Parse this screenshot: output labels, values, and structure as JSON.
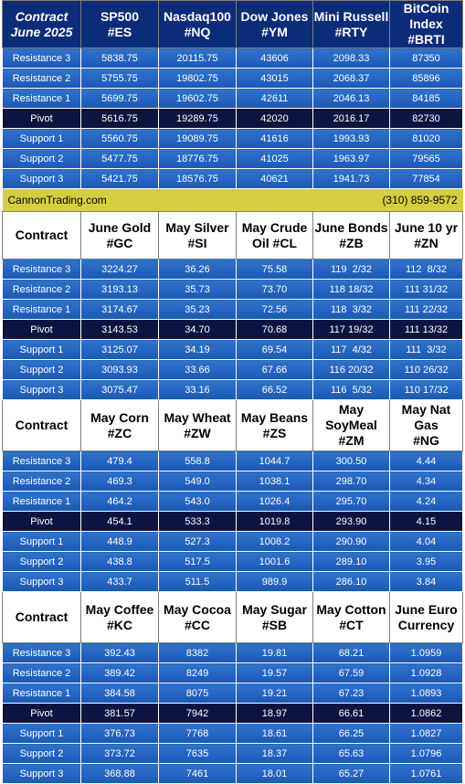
{
  "contact": {
    "website": "CannonTrading.com",
    "phone": "(310) 859-9572"
  },
  "row_labels": [
    "Resistance 3",
    "Resistance 2",
    "Resistance 1",
    "Pivot",
    "Support 1",
    "Support 2",
    "Support 3"
  ],
  "sections": [
    {
      "corner": [
        "Contract",
        "June 2025"
      ],
      "columns": [
        [
          "SP500",
          "#ES"
        ],
        [
          "Nasdaq100",
          "#NQ"
        ],
        [
          "Dow Jones",
          "#YM"
        ],
        [
          "Mini Russell",
          "#RTY"
        ],
        [
          "BitCoin",
          "Index #BRTI"
        ]
      ],
      "rows": [
        [
          "5838.75",
          "20115.75",
          "43606",
          "2098.33",
          "87350"
        ],
        [
          "5755.75",
          "19802.75",
          "43015",
          "2068.37",
          "85896"
        ],
        [
          "5699.75",
          "19602.75",
          "42611",
          "2046.13",
          "84185"
        ],
        [
          "5616.75",
          "19289.75",
          "42020",
          "2016.17",
          "82730"
        ],
        [
          "5560.75",
          "19089.75",
          "41616",
          "1993.93",
          "81020"
        ],
        [
          "5477.75",
          "18776.75",
          "41025",
          "1963.97",
          "79565"
        ],
        [
          "5421.75",
          "18576.75",
          "40621",
          "1941.73",
          "77854"
        ]
      ]
    },
    {
      "corner": [
        "Contract"
      ],
      "columns": [
        [
          "June Gold",
          "#GC"
        ],
        [
          "May Silver",
          "#SI"
        ],
        [
          "May Crude",
          "Oil #CL"
        ],
        [
          "June Bonds",
          "#ZB"
        ],
        [
          "June 10 yr",
          "#ZN"
        ]
      ],
      "rows": [
        [
          "3224.27",
          "36.26",
          "75.58",
          "119  2/32",
          "112  8/32"
        ],
        [
          "3193.13",
          "35.73",
          "73.70",
          "118 18/32",
          "111 31/32"
        ],
        [
          "3174.67",
          "35.23",
          "72.56",
          "118  3/32",
          "111 22/32"
        ],
        [
          "3143.53",
          "34.70",
          "70.68",
          "117 19/32",
          "111 13/32"
        ],
        [
          "3125.07",
          "34.19",
          "69.54",
          "117  4/32",
          "111  3/32"
        ],
        [
          "3093.93",
          "33.66",
          "67.66",
          "116 20/32",
          "110 26/32"
        ],
        [
          "3075.47",
          "33.16",
          "66.52",
          "116  5/32",
          "110 17/32"
        ]
      ]
    },
    {
      "corner": [
        "Contract"
      ],
      "columns": [
        [
          "May Corn",
          "#ZC"
        ],
        [
          "May  Wheat",
          "#ZW"
        ],
        [
          "May Beans",
          "#ZS"
        ],
        [
          "May",
          "SoyMeal",
          "#ZM"
        ],
        [
          "May Nat Gas",
          "#NG"
        ]
      ],
      "rows": [
        [
          "479.4",
          "558.8",
          "1044.7",
          "300.50",
          "4.44"
        ],
        [
          "469.3",
          "549.0",
          "1038.1",
          "298.70",
          "4.34"
        ],
        [
          "464.2",
          "543.0",
          "1026.4",
          "295.70",
          "4.24"
        ],
        [
          "454.1",
          "533.3",
          "1019.8",
          "293.90",
          "4.15"
        ],
        [
          "448.9",
          "527.3",
          "1008.2",
          "290.90",
          "4.04"
        ],
        [
          "438.8",
          "517.5",
          "1001.6",
          "289.10",
          "3.95"
        ],
        [
          "433.7",
          "511.5",
          "989.9",
          "286.10",
          "3.84"
        ]
      ]
    },
    {
      "corner": [
        "Contract"
      ],
      "columns": [
        [
          "May Coffee",
          "#KC"
        ],
        [
          "May Cocoa",
          "#CC"
        ],
        [
          "May Sugar",
          "#SB"
        ],
        [
          "May Cotton",
          "#CT"
        ],
        [
          "June Euro",
          "Currency"
        ]
      ],
      "rows": [
        [
          "392.43",
          "8382",
          "19.81",
          "68.21",
          "1.0959"
        ],
        [
          "389.42",
          "8249",
          "19.57",
          "67.59",
          "1.0928"
        ],
        [
          "384.58",
          "8075",
          "19.21",
          "67.23",
          "1.0893"
        ],
        [
          "381.57",
          "7942",
          "18.97",
          "66.61",
          "1.0862"
        ],
        [
          "376.73",
          "7768",
          "18.61",
          "66.25",
          "1.0827"
        ],
        [
          "373.72",
          "7635",
          "18.37",
          "65.63",
          "1.0796"
        ],
        [
          "368.88",
          "7461",
          "18.01",
          "65.27",
          "1.0761"
        ]
      ]
    }
  ]
}
